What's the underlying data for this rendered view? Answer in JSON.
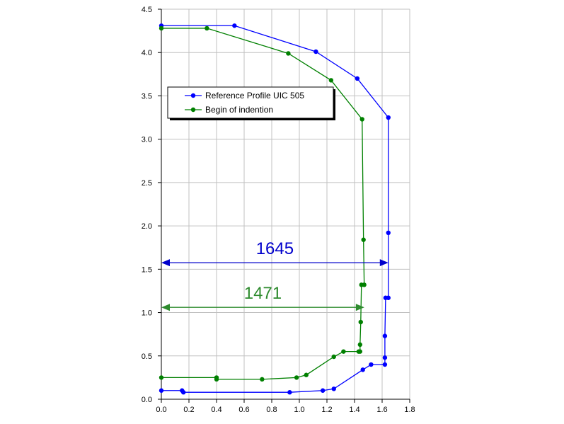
{
  "chart_data": {
    "type": "scatter",
    "xlim": [
      0,
      1.8
    ],
    "ylim": [
      0,
      4.5
    ],
    "x_ticks": [
      "0.0",
      "0.2",
      "0.4",
      "0.6",
      "0.8",
      "1.0",
      "1.2",
      "1.4",
      "1.6",
      "1.8"
    ],
    "y_ticks": [
      "0.0",
      "0.5",
      "1.0",
      "1.5",
      "2.0",
      "2.5",
      "3.0",
      "3.5",
      "4.0",
      "4.5"
    ],
    "grid": true,
    "legend_placement": "upper-middle",
    "series": [
      {
        "name": "Reference Profile UIC 505",
        "color": "#0000ff",
        "points": [
          [
            0,
            4.31
          ],
          [
            0.53,
            4.31
          ],
          [
            1.12,
            4.01
          ],
          [
            1.42,
            3.7
          ],
          [
            1.645,
            3.25
          ],
          [
            1.645,
            1.92
          ],
          [
            1.645,
            1.17
          ],
          [
            1.625,
            1.17
          ],
          [
            1.62,
            0.73
          ],
          [
            1.62,
            0.48
          ],
          [
            1.62,
            0.4
          ],
          [
            1.52,
            0.4
          ],
          [
            1.46,
            0.34
          ],
          [
            1.25,
            0.12
          ],
          [
            1.17,
            0.1
          ],
          [
            0.93,
            0.08
          ],
          [
            0.16,
            0.08
          ],
          [
            0.15,
            0.1
          ],
          [
            0,
            0.1
          ]
        ]
      },
      {
        "name": "Begin of indention",
        "color": "#008000",
        "points": [
          [
            0,
            4.28
          ],
          [
            0.33,
            4.28
          ],
          [
            0.92,
            3.99
          ],
          [
            1.23,
            3.68
          ],
          [
            1.455,
            3.23
          ],
          [
            1.465,
            1.84
          ],
          [
            1.47,
            1.32
          ],
          [
            1.45,
            1.32
          ],
          [
            1.445,
            0.89
          ],
          [
            1.44,
            0.63
          ],
          [
            1.44,
            0.55
          ],
          [
            1.43,
            0.55
          ],
          [
            1.32,
            0.55
          ],
          [
            1.25,
            0.49
          ],
          [
            1.05,
            0.28
          ],
          [
            0.98,
            0.25
          ],
          [
            0.73,
            0.23
          ],
          [
            0.4,
            0.23
          ],
          [
            0.4,
            0.25
          ],
          [
            0,
            0.25
          ]
        ]
      }
    ],
    "dimensions": [
      {
        "label": "1645",
        "x_from": 0,
        "x_to": 1.645,
        "y": 1.575,
        "color": "#0000cc"
      },
      {
        "label": "1471",
        "x_from": 0,
        "x_to": 1.471,
        "y": 1.06,
        "color": "#2e8b2e"
      }
    ]
  }
}
